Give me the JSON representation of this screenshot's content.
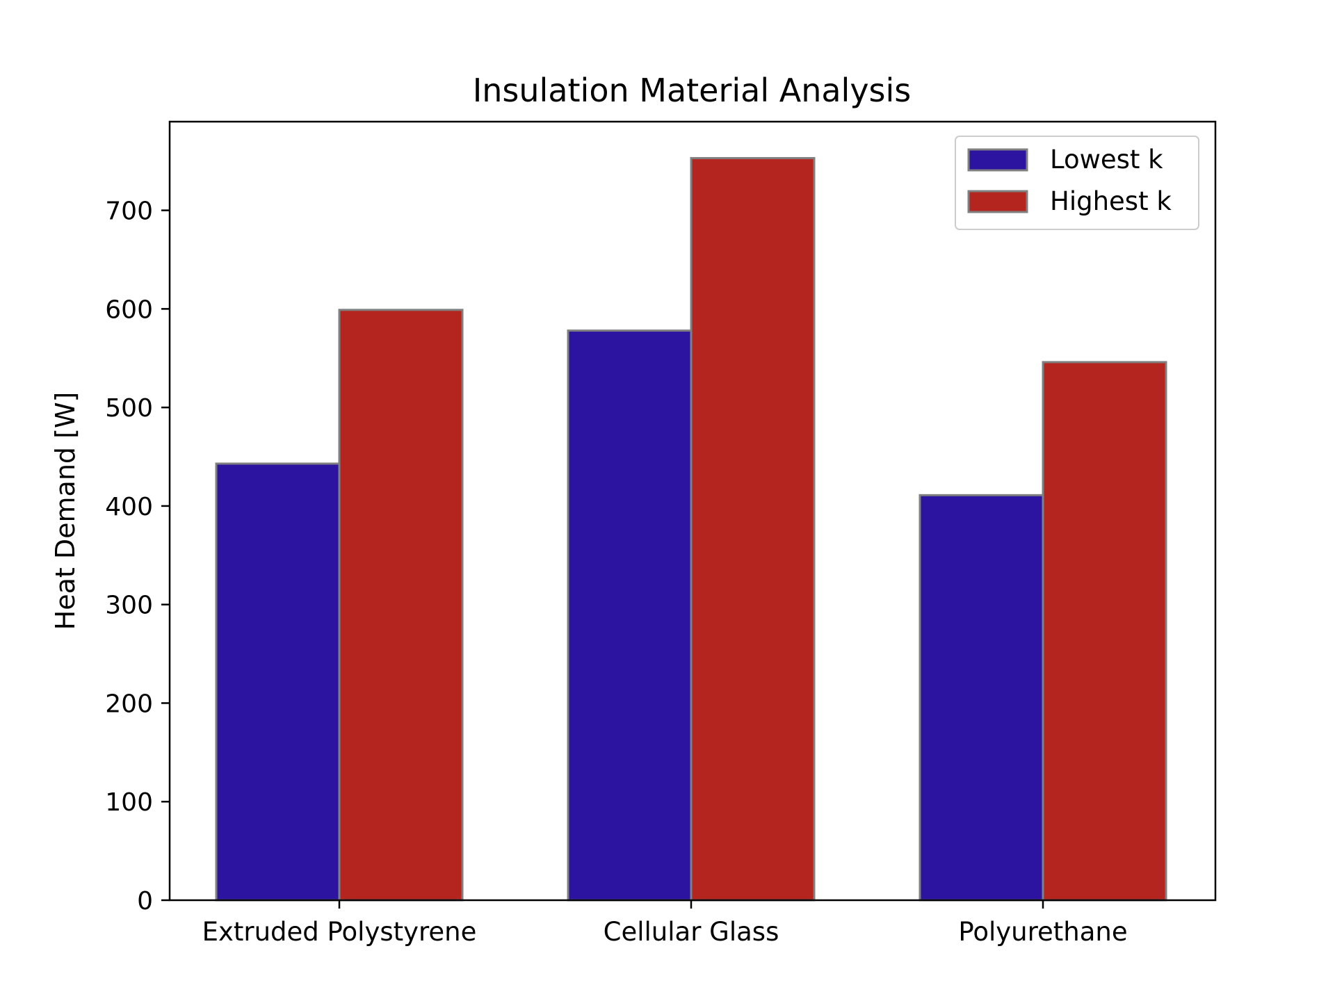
{
  "chart_data": {
    "type": "bar",
    "title": "Insulation Material Analysis",
    "xlabel": "",
    "ylabel": "Heat Demand [W]",
    "categories": [
      "Extruded Polystyrene",
      "Cellular Glass",
      "Polyurethane"
    ],
    "series": [
      {
        "name": "Lowest k",
        "values": [
          443,
          578,
          411
        ],
        "color": "#2c14a0"
      },
      {
        "name": "Highest k",
        "values": [
          599,
          753,
          546
        ],
        "color": "#b3251e"
      }
    ],
    "ylim": [
      0,
      790
    ],
    "yticks": [
      "0",
      "100",
      "200",
      "300",
      "400",
      "500",
      "600",
      "700"
    ],
    "legend_position": "top-right",
    "bar_edge_color": "#808080",
    "grid": false
  }
}
